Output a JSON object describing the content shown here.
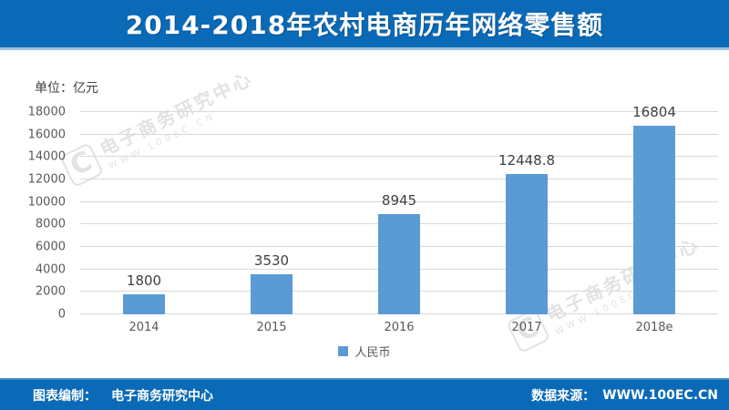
{
  "header": {
    "title": "2014-2018年农村电商历年网络零售额"
  },
  "chart_data": {
    "type": "bar",
    "title": "2014-2018年农村电商历年网络零售额",
    "unit_label": "单位：亿元",
    "xlabel": "",
    "ylabel": "亿元",
    "categories": [
      "2014",
      "2015",
      "2016",
      "2017",
      "2018e"
    ],
    "values": [
      1800,
      3530,
      8945,
      12448.8,
      16804
    ],
    "value_labels": [
      "1800",
      "3530",
      "8945",
      "12448.8",
      "16804"
    ],
    "series_name": "人民币",
    "ylim": [
      0,
      18000
    ],
    "yticks": [
      0,
      2000,
      4000,
      6000,
      8000,
      10000,
      12000,
      14000,
      16000,
      18000
    ],
    "grid": true,
    "legend_position": "bottom",
    "bar_color": "#5b9bd5"
  },
  "footer": {
    "left_label": "图表编制：",
    "left_value": "电子商务研究中心",
    "right_label": "数据来源：",
    "right_value": "WWW.100EC.CN"
  },
  "watermark": {
    "logo_glyph": "C",
    "text": "电子商务研究中心",
    "subtext": "WWW.100EC.CN"
  },
  "colors": {
    "brand_blue": "#0b6ab7",
    "bar_blue": "#5b9bd5",
    "gridline": "#d9d9d9",
    "tick_text": "#595959",
    "value_text": "#404040",
    "title_text": "#ffffff"
  }
}
